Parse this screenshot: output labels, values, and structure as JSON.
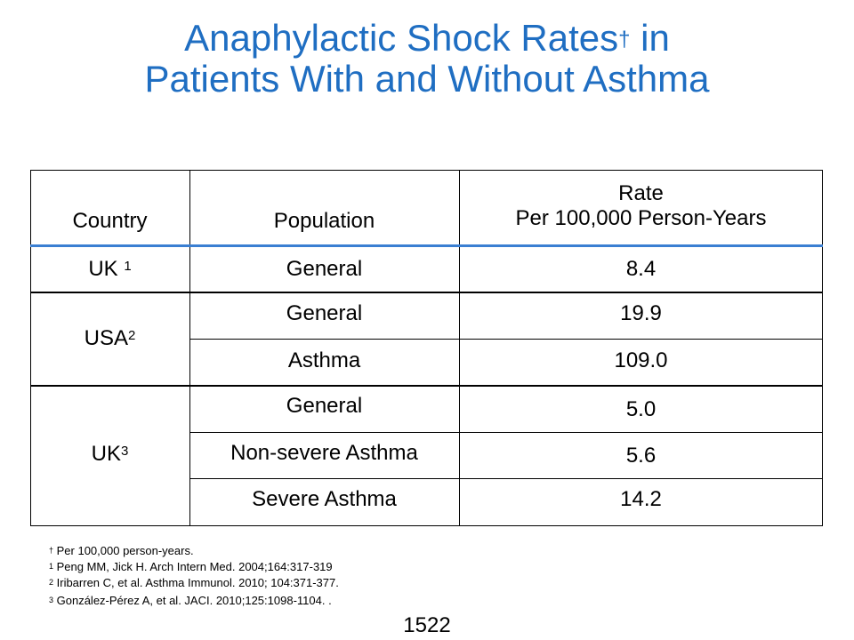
{
  "slide": {
    "title_line1": "Anaphylactic Shock Rates",
    "title_dagger": "†",
    "title_line1_end": " in",
    "title_line2": "Patients With and Without Asthma",
    "page_number": "1522"
  },
  "table": {
    "headers": {
      "country": "Country",
      "population": "Population",
      "rate_line1": "Rate",
      "rate_line2": "Per 100,000 Person-Years"
    },
    "groups": [
      {
        "country": "UK ",
        "sup": "1",
        "rows": [
          {
            "population": "General",
            "rate": "8.4"
          }
        ]
      },
      {
        "country": "USA",
        "sup": "2",
        "rows": [
          {
            "population": "General",
            "rate": "19.9"
          },
          {
            "population": "Asthma",
            "rate": "109.0"
          }
        ]
      },
      {
        "country": "UK",
        "sup": "3",
        "rows": [
          {
            "population": "General",
            "rate": "5.0"
          },
          {
            "population": "Non-severe Asthma",
            "rate": "5.6"
          },
          {
            "population": "Severe Asthma",
            "rate": "14.2"
          }
        ]
      }
    ]
  },
  "footnotes": [
    {
      "mark": "†",
      "text": " Per 100,000 person-years."
    },
    {
      "mark": "1",
      "text": " Peng MM, Jick H.  Arch Intern Med. 2004;164:317-319"
    },
    {
      "mark": "2",
      "text": " Iribarren C, et al. Asthma Immunol.  2010; 104:371-377."
    },
    {
      "mark": "3",
      "text": " González-Pérez  A, et al. JACI. 2010;125:1098-1104. ."
    }
  ]
}
